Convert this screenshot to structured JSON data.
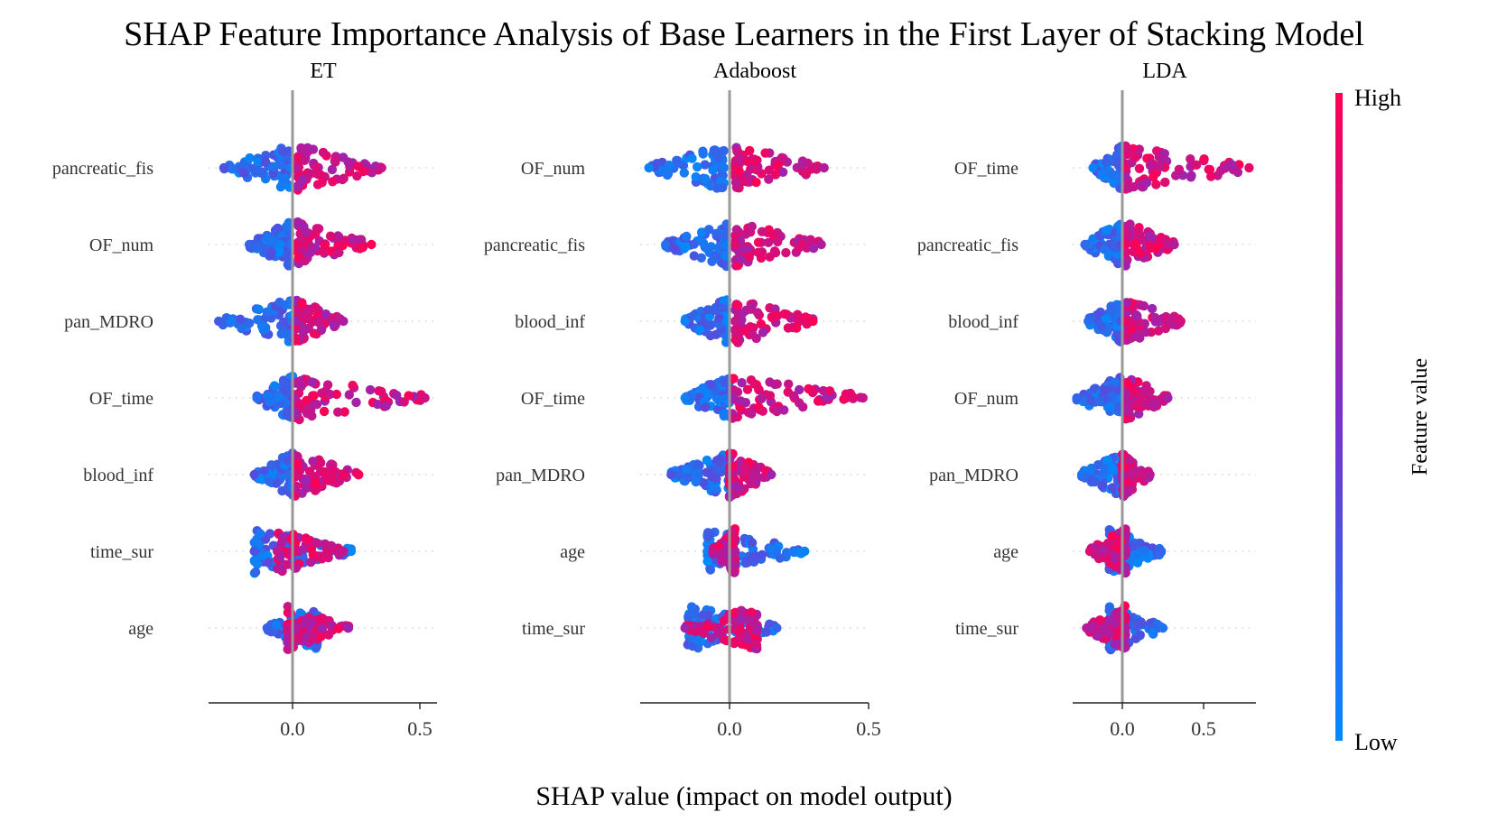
{
  "chart_data": {
    "type": "scatter",
    "title": "SHAP Feature Importance Analysis of Base Learners in the First Layer of Stacking Model",
    "xlabel": "SHAP value (impact on model output)",
    "colorbar": {
      "label": "Feature value",
      "high_label": "High",
      "low_label": "Low",
      "low_color": "#008bfb",
      "mid_color": "#7c2fd0",
      "high_color": "#ff0052"
    },
    "panels": [
      {
        "name": "ET",
        "xlim": [
          -0.33,
          0.57
        ],
        "xticks": [
          0.0,
          0.5
        ],
        "xtick_labels": [
          "0.0",
          "0.5"
        ],
        "features": [
          {
            "name": "pancreatic_fis",
            "low_min": -0.27,
            "low_max": -0.01,
            "high_min": 0.02,
            "high_max": 0.35
          },
          {
            "name": "OF_num",
            "low_min": -0.17,
            "low_max": -0.01,
            "high_min": 0.02,
            "high_max": 0.31
          },
          {
            "name": "pan_MDRO",
            "low_min": -0.29,
            "low_max": 0.0,
            "high_min": 0.01,
            "high_max": 0.2
          },
          {
            "name": "OF_time",
            "low_min": -0.14,
            "low_max": 0.0,
            "high_min": 0.01,
            "high_max": 0.52
          },
          {
            "name": "blood_inf",
            "low_min": -0.15,
            "low_max": 0.0,
            "high_min": 0.01,
            "high_max": 0.26
          },
          {
            "name": "time_sur",
            "low_min": -0.15,
            "low_max": 0.23,
            "high_min": -0.06,
            "high_max": 0.2
          },
          {
            "name": "age",
            "low_min": -0.1,
            "low_max": 0.1,
            "high_min": -0.02,
            "high_max": 0.22
          }
        ]
      },
      {
        "name": "Adaboost",
        "xlim": [
          -0.33,
          0.57
        ],
        "xticks": [
          0.0,
          0.5
        ],
        "xtick_labels": [
          "0.0",
          "0.5"
        ],
        "features": [
          {
            "name": "OF_num",
            "low_min": -0.29,
            "low_max": -0.02,
            "high_min": 0.02,
            "high_max": 0.34
          },
          {
            "name": "pancreatic_fis",
            "low_min": -0.23,
            "low_max": -0.01,
            "high_min": 0.02,
            "high_max": 0.33
          },
          {
            "name": "blood_inf",
            "low_min": -0.16,
            "low_max": -0.01,
            "high_min": 0.02,
            "high_max": 0.3
          },
          {
            "name": "OF_time",
            "low_min": -0.16,
            "low_max": 0.0,
            "high_min": 0.01,
            "high_max": 0.48
          },
          {
            "name": "pan_MDRO",
            "low_min": -0.21,
            "low_max": 0.0,
            "high_min": 0.0,
            "high_max": 0.15
          },
          {
            "name": "age",
            "low_min": -0.08,
            "low_max": 0.27,
            "high_min": -0.06,
            "high_max": 0.02
          },
          {
            "name": "time_sur",
            "low_min": -0.15,
            "low_max": 0.17,
            "high_min": -0.16,
            "high_max": 0.1
          }
        ]
      },
      {
        "name": "LDA",
        "xlim": [
          -0.33,
          0.85
        ],
        "xticks": [
          0.0,
          0.5
        ],
        "xtick_labels": [
          "0.0",
          "0.5"
        ],
        "features": [
          {
            "name": "OF_time",
            "low_min": -0.18,
            "low_max": 0.0,
            "high_min": 0.02,
            "high_max": 0.78
          },
          {
            "name": "pancreatic_fis",
            "low_min": -0.23,
            "low_max": -0.01,
            "high_min": 0.02,
            "high_max": 0.32
          },
          {
            "name": "blood_inf",
            "low_min": -0.21,
            "low_max": -0.01,
            "high_min": 0.02,
            "high_max": 0.36
          },
          {
            "name": "OF_num",
            "low_min": -0.28,
            "low_max": 0.0,
            "high_min": 0.02,
            "high_max": 0.28
          },
          {
            "name": "pan_MDRO",
            "low_min": -0.25,
            "low_max": 0.0,
            "high_min": 0.0,
            "high_max": 0.17
          },
          {
            "name": "age",
            "low_min": -0.08,
            "low_max": 0.24,
            "high_min": -0.2,
            "high_max": 0.02
          },
          {
            "name": "time_sur",
            "low_min": -0.08,
            "low_max": 0.25,
            "high_min": -0.22,
            "high_max": 0.02
          }
        ]
      }
    ]
  }
}
